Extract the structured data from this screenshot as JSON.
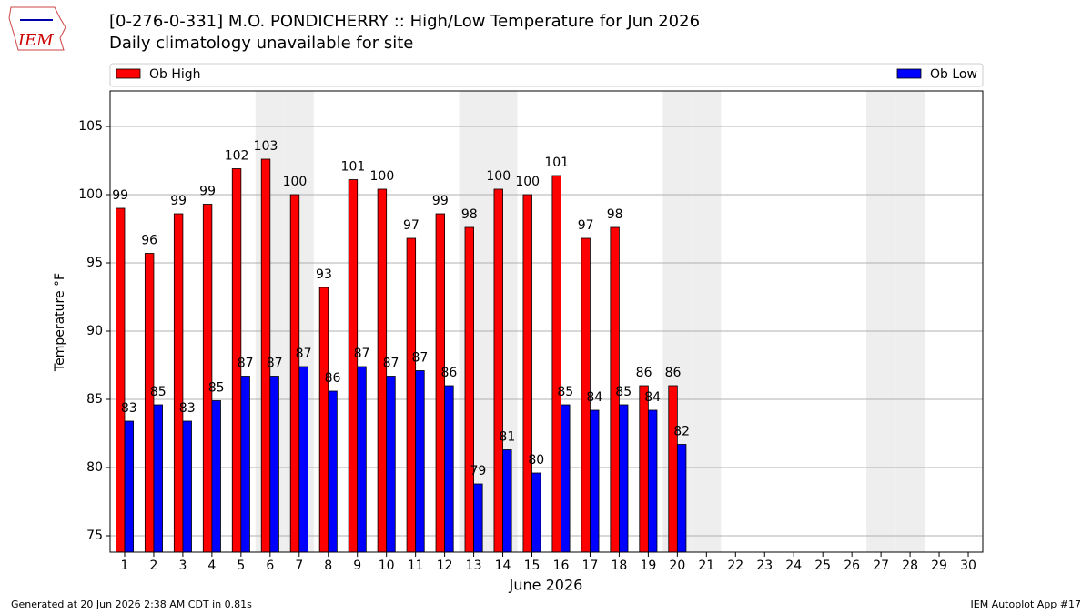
{
  "page": {
    "logo": "IEM",
    "footer_left": "Generated at 20 Jun 2026 2:38 AM CDT in 0.81s",
    "footer_right": "IEM Autoplot App #17"
  },
  "chart_data": {
    "type": "bar",
    "title": "[0-276-0-331] M.O. PONDICHERRY :: High/Low Temperature for Jun 2026",
    "subtitle": "Daily climatology unavailable for site",
    "x_label": "June 2026",
    "y_label": "Temperature °F",
    "categories": [
      "1",
      "2",
      "3",
      "4",
      "5",
      "6",
      "7",
      "8",
      "9",
      "10",
      "11",
      "12",
      "13",
      "14",
      "15",
      "16",
      "17",
      "18",
      "19",
      "20",
      "21",
      "22",
      "23",
      "24",
      "25",
      "26",
      "27",
      "28",
      "29",
      "30"
    ],
    "series": [
      {
        "name": "Ob High",
        "color": "#ff0000",
        "values": [
          99.0,
          95.7,
          98.6,
          99.3,
          101.9,
          102.6,
          100.0,
          93.2,
          101.1,
          100.4,
          96.8,
          98.6,
          97.6,
          100.4,
          100.0,
          101.4,
          96.8,
          97.6,
          86.0,
          86.0,
          null,
          null,
          null,
          null,
          null,
          null,
          null,
          null,
          null,
          null
        ],
        "value_labels": [
          "99",
          "96",
          "99",
          "99",
          "102",
          "103",
          "100",
          "93",
          "101",
          "100",
          "97",
          "99",
          "98",
          "100",
          "100",
          "101",
          "97",
          "98",
          "86",
          "86",
          null,
          null,
          null,
          null,
          null,
          null,
          null,
          null,
          null,
          null
        ]
      },
      {
        "name": "Ob Low",
        "color": "#0000ff",
        "values": [
          83.4,
          84.6,
          83.4,
          84.9,
          86.7,
          86.7,
          87.4,
          85.6,
          87.4,
          86.7,
          87.1,
          86.0,
          78.8,
          81.3,
          79.6,
          84.6,
          84.2,
          84.6,
          84.2,
          81.7,
          null,
          null,
          null,
          null,
          null,
          null,
          null,
          null,
          null,
          null
        ],
        "value_labels": [
          "83",
          "85",
          "83",
          "85",
          "87",
          "87",
          "87",
          "86",
          "87",
          "87",
          "87",
          "86",
          "79",
          "81",
          "80",
          "85",
          "84",
          "85",
          "84",
          "82",
          null,
          null,
          null,
          null,
          null,
          null,
          null,
          null,
          null,
          null
        ]
      }
    ],
    "shaded_days": [
      "6",
      "7",
      "13",
      "14",
      "20",
      "21",
      "27",
      "28"
    ],
    "shade_color": "#eeeeee",
    "ylim": [
      73.8,
      107.6
    ],
    "yticks": [
      75,
      80,
      85,
      90,
      95,
      100,
      105
    ],
    "grid": true
  }
}
